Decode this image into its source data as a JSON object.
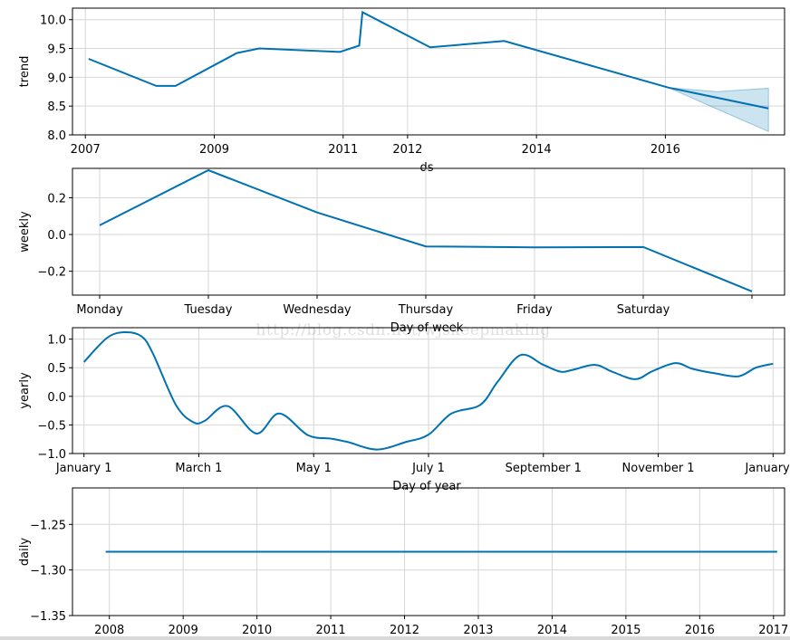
{
  "watermark": "http://blog.csdn.net/wjskeepmaking",
  "colors": {
    "line": "#0072B2",
    "band": "#0072B2",
    "grid": "#d6d6d6",
    "axis": "#000000"
  },
  "chart_data": [
    {
      "type": "line",
      "xlabel": "ds",
      "ylabel": "trend",
      "xlim": [
        2006.8,
        2017.85
      ],
      "ylim": [
        8.0,
        10.2
      ],
      "xticks": [
        2007,
        2009,
        2011,
        2012,
        2014,
        2016
      ],
      "xtick_labels": [
        "2007",
        "2009",
        "2011",
        "2012",
        "2014",
        "2016"
      ],
      "yticks": [
        8.0,
        8.5,
        9.0,
        9.5,
        10.0
      ],
      "ytick_labels": [
        "8.0",
        "8.5",
        "9.0",
        "9.5",
        "10.0"
      ],
      "grid": true,
      "x": [
        2007.05,
        2008.1,
        2008.4,
        2009.35,
        2009.7,
        2010.95,
        2011.25,
        2011.3,
        2012.35,
        2013.5,
        2016.05,
        2017.6
      ],
      "y": [
        9.32,
        8.85,
        8.85,
        9.42,
        9.5,
        9.44,
        9.55,
        10.13,
        9.52,
        9.63,
        8.82,
        8.46
      ],
      "uncertainty": {
        "x": [
          2016.05,
          2016.8,
          2017.6
        ],
        "upper": [
          8.82,
          8.75,
          8.81
        ],
        "lower": [
          8.82,
          8.45,
          8.06
        ]
      }
    },
    {
      "type": "line",
      "xlabel": "Day of week",
      "ylabel": "weekly",
      "categories": [
        "Monday",
        "Tuesday",
        "Wednesday",
        "Thursday",
        "Friday",
        "Saturday",
        ""
      ],
      "xlim": [
        -0.25,
        6.3
      ],
      "ylim": [
        -0.33,
        0.36
      ],
      "yticks": [
        -0.2,
        0.0,
        0.2
      ],
      "ytick_labels": [
        "−0.2",
        "0.0",
        "0.2"
      ],
      "grid": true,
      "values": [
        0.05,
        0.35,
        0.12,
        -0.065,
        -0.07,
        -0.068,
        -0.31
      ]
    },
    {
      "type": "line",
      "xlabel": "Day of year",
      "ylabel": "yearly",
      "xlim": [
        -0.1,
        6.1
      ],
      "ylim": [
        -1.0,
        1.2
      ],
      "xticks": [
        0,
        1,
        2,
        3,
        4,
        5,
        6
      ],
      "xtick_labels": [
        "January 1",
        "March 1",
        "May 1",
        "July 1",
        "September 1",
        "November 1",
        "January 1"
      ],
      "yticks": [
        -1.0,
        -0.5,
        0.0,
        0.5,
        1.0
      ],
      "ytick_labels": [
        "−1.0",
        "−0.5",
        "0.0",
        "0.5",
        "1.0"
      ],
      "grid": true,
      "x": [
        0,
        0.2,
        0.35,
        0.5,
        0.6,
        0.8,
        0.95,
        1.05,
        1.25,
        1.5,
        1.7,
        1.95,
        2.15,
        2.3,
        2.55,
        2.8,
        3.0,
        3.2,
        3.45,
        3.6,
        3.8,
        4.0,
        4.15,
        4.25,
        4.45,
        4.6,
        4.8,
        4.95,
        5.15,
        5.3,
        5.5,
        5.7,
        5.85,
        6.0
      ],
      "y": [
        0.6,
        1.02,
        1.12,
        1.05,
        0.75,
        -0.15,
        -0.45,
        -0.43,
        -0.17,
        -0.65,
        -0.3,
        -0.68,
        -0.74,
        -0.8,
        -0.93,
        -0.8,
        -0.67,
        -0.3,
        -0.15,
        0.25,
        0.72,
        0.55,
        0.43,
        0.46,
        0.55,
        0.43,
        0.3,
        0.44,
        0.58,
        0.48,
        0.4,
        0.35,
        0.5,
        0.57
      ]
    },
    {
      "type": "line",
      "xlabel": "",
      "ylabel": "daily",
      "xlim": [
        2007.5,
        2017.15
      ],
      "ylim": [
        -1.35,
        -1.21
      ],
      "xticks": [
        2008,
        2009,
        2010,
        2011,
        2012,
        2013,
        2014,
        2015,
        2016,
        2017
      ],
      "xtick_labels": [
        "2008",
        "2009",
        "2010",
        "2011",
        "2012",
        "2013",
        "2014",
        "2015",
        "2016",
        "2017"
      ],
      "yticks": [
        -1.35,
        -1.3,
        -1.25
      ],
      "ytick_labels": [
        "−1.35",
        "−1.30",
        "−1.25"
      ],
      "grid": true,
      "x": [
        2007.95,
        2017.05
      ],
      "y": [
        -1.28,
        -1.28
      ]
    }
  ]
}
